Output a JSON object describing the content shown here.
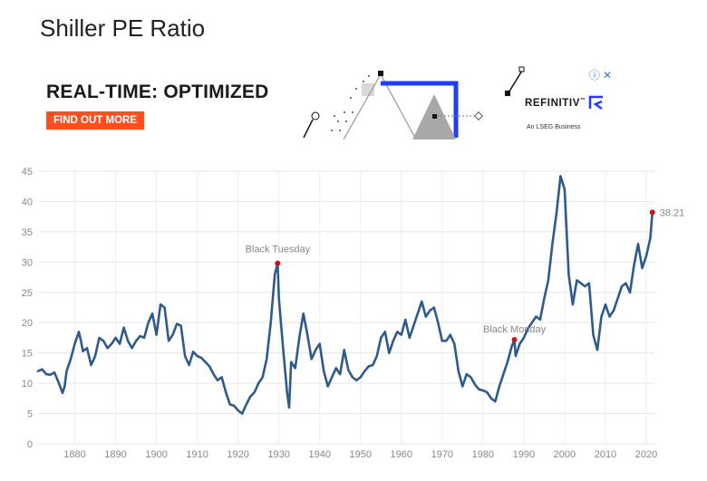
{
  "page": {
    "title": "Shiller PE Ratio"
  },
  "ad": {
    "headline": "REAL-TIME: OPTIMIZED",
    "cta_label": "FIND OUT MORE",
    "brand": "REFINITIV",
    "brand_mark": "™",
    "tagline": "An LSEG Business",
    "info_icon": "info-circle-icon",
    "close_icon": "close-icon",
    "info_glyph": "ⓘ",
    "close_glyph": "✕",
    "colors": {
      "cta": "#ff4f1f",
      "accent_blue": "#1f3cff"
    }
  },
  "chart_data": {
    "type": "line",
    "title": "",
    "xlabel": "",
    "ylabel": "",
    "xlim": [
      1871,
      2022
    ],
    "ylim": [
      0,
      45
    ],
    "xticks": [
      1880,
      1890,
      1900,
      1910,
      1920,
      1930,
      1940,
      1950,
      1960,
      1970,
      1980,
      1990,
      2000,
      2010,
      2020
    ],
    "yticks": [
      0,
      5,
      10,
      15,
      20,
      25,
      30,
      35,
      40,
      45
    ],
    "grid": true,
    "line_color": "#2f5b8a",
    "marker_color": "#c4161c",
    "series": [
      {
        "x": [
          1871.0,
          1872.0,
          1873.0,
          1874.0,
          1875.0,
          1876.0,
          1877.0,
          1877.5,
          1878.0,
          1879.0,
          1880.0,
          1881.0,
          1881.5,
          1882.0,
          1883.0,
          1884.0,
          1885.0,
          1886.0,
          1887.0,
          1888.0,
          1889.0,
          1890.0,
          1891.0,
          1892.0,
          1893.0,
          1894.0,
          1895.0,
          1896.0,
          1897.0,
          1898.0,
          1899.0,
          1900.0,
          1901.0,
          1902.0,
          1903.0,
          1904.0,
          1905.0,
          1906.0,
          1907.0,
          1908.0,
          1909.0,
          1910.0,
          1911.0,
          1912.0,
          1913.0,
          1914.0,
          1915.0,
          1916.0,
          1917.0,
          1918.0,
          1919.0,
          1920.0,
          1921.0,
          1922.0,
          1923.0,
          1924.0,
          1925.0,
          1926.0,
          1927.0,
          1928.0,
          1929.0,
          1929.7,
          1930.0,
          1931.0,
          1932.0,
          1932.5,
          1933.0,
          1934.0,
          1935.0,
          1936.0,
          1937.0,
          1938.0,
          1939.0,
          1940.0,
          1941.0,
          1942.0,
          1943.0,
          1944.0,
          1945.0,
          1946.0,
          1947.0,
          1948.0,
          1949.0,
          1950.0,
          1951.0,
          1952.0,
          1953.0,
          1954.0,
          1955.0,
          1956.0,
          1957.0,
          1958.0,
          1959.0,
          1960.0,
          1961.0,
          1962.0,
          1963.0,
          1964.0,
          1965.0,
          1966.0,
          1967.0,
          1968.0,
          1969.0,
          1970.0,
          1971.0,
          1972.0,
          1973.0,
          1974.0,
          1975.0,
          1976.0,
          1977.0,
          1978.0,
          1979.0,
          1980.0,
          1981.0,
          1982.0,
          1983.0,
          1984.0,
          1985.0,
          1986.0,
          1987.0,
          1987.7,
          1988.0,
          1989.0,
          1990.0,
          1991.0,
          1992.0,
          1993.0,
          1994.0,
          1995.0,
          1996.0,
          1997.0,
          1998.0,
          1999.0,
          2000.0,
          2001.0,
          2002.0,
          2003.0,
          2004.0,
          2005.0,
          2006.0,
          2007.0,
          2008.0,
          2009.0,
          2010.0,
          2011.0,
          2012.0,
          2013.0,
          2014.0,
          2015.0,
          2016.0,
          2017.0,
          2018.0,
          2019.0,
          2020.0,
          2021.0,
          2021.5
        ],
        "y": [
          12.0,
          12.3,
          11.5,
          11.4,
          11.8,
          10.2,
          8.4,
          9.5,
          12.0,
          14.0,
          16.5,
          18.5,
          17.0,
          15.3,
          15.8,
          13.0,
          14.5,
          17.5,
          17.0,
          15.8,
          16.5,
          17.5,
          16.5,
          19.2,
          17.0,
          15.8,
          17.0,
          17.8,
          17.5,
          20.0,
          21.5,
          18.0,
          23.0,
          22.5,
          17.0,
          18.0,
          19.8,
          19.5,
          14.5,
          13.0,
          15.2,
          14.5,
          14.2,
          13.5,
          12.8,
          11.5,
          10.5,
          11.0,
          8.5,
          6.5,
          6.3,
          5.5,
          5.0,
          6.5,
          7.8,
          8.5,
          10.0,
          11.0,
          14.0,
          20.0,
          28.0,
          29.8,
          24.0,
          16.0,
          8.5,
          6.0,
          13.5,
          12.5,
          17.5,
          21.5,
          18.0,
          14.0,
          15.5,
          16.5,
          12.0,
          9.5,
          11.0,
          12.5,
          11.5,
          15.5,
          12.2,
          11.0,
          10.5,
          11.0,
          12.0,
          12.8,
          13.0,
          14.5,
          17.5,
          18.5,
          15.0,
          17.0,
          18.5,
          18.0,
          20.5,
          17.5,
          19.5,
          21.5,
          23.5,
          21.0,
          22.0,
          22.5,
          20.0,
          17.0,
          17.0,
          18.0,
          16.5,
          12.0,
          9.5,
          11.5,
          11.0,
          9.8,
          9.0,
          8.8,
          8.5,
          7.5,
          7.0,
          9.5,
          11.5,
          13.5,
          16.0,
          17.2,
          14.5,
          16.5,
          17.5,
          19.0,
          20.0,
          21.0,
          20.5,
          24.0,
          27.0,
          33.0,
          38.0,
          44.2,
          42.0,
          28.0,
          23.0,
          27.0,
          26.5,
          26.0,
          26.5,
          18.0,
          15.5,
          21.0,
          23.0,
          21.0,
          22.0,
          24.0,
          26.0,
          26.5,
          25.0,
          29.5,
          33.0,
          29.0,
          31.0,
          34.0,
          38.21
        ]
      }
    ],
    "annotations": [
      {
        "x": 1929.7,
        "y": 29.8,
        "label": "Black Tuesday",
        "dy": -12
      },
      {
        "x": 1987.7,
        "y": 17.2,
        "label": "Black Monday",
        "dy": -8
      },
      {
        "x": 2021.5,
        "y": 38.21,
        "label": "38.21",
        "dy": 4,
        "dx": 8
      }
    ]
  }
}
